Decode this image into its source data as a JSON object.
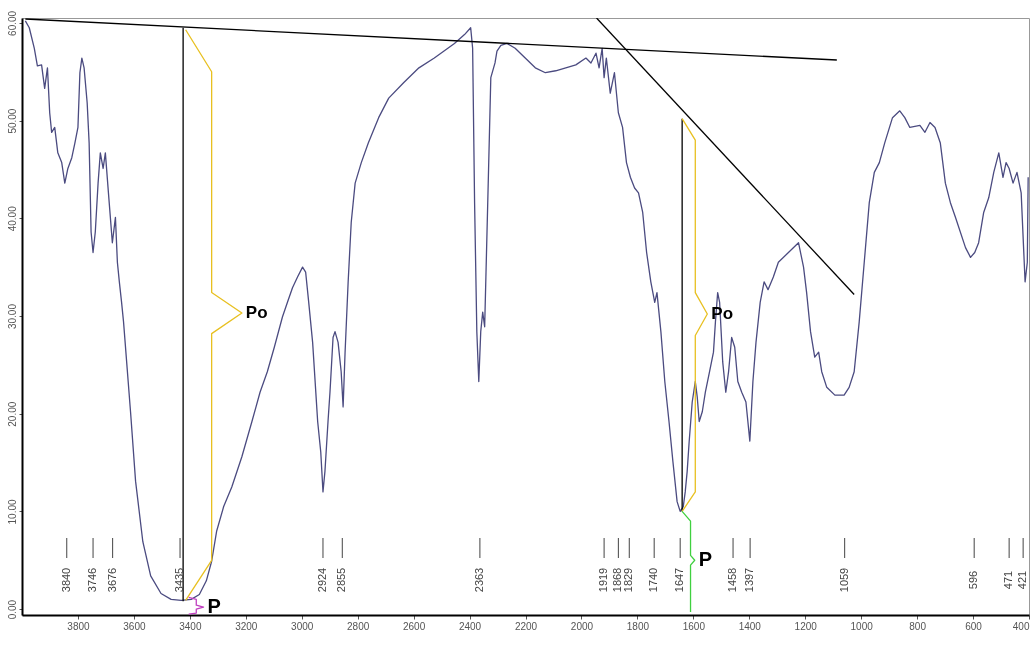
{
  "chart_data": {
    "type": "line",
    "xlim": [
      4000,
      400
    ],
    "ylim": [
      -0.6,
      60.5
    ],
    "xticks": [
      3800,
      3600,
      3400,
      3200,
      3000,
      2800,
      2600,
      2400,
      2200,
      2000,
      1800,
      1600,
      1400,
      1200,
      1000,
      800,
      600,
      400
    ],
    "yticks": [
      {
        "value": 0,
        "label": "0.00"
      },
      {
        "value": 10,
        "label": "10.00"
      },
      {
        "value": 20,
        "label": "20.00"
      },
      {
        "value": 30,
        "label": "30.00"
      },
      {
        "value": 40,
        "label": "40.00"
      },
      {
        "value": 50,
        "label": "50.00"
      },
      {
        "value": 60,
        "label": "60.00"
      }
    ],
    "grid": false,
    "marker": "none",
    "line_style": "solid",
    "series": [
      {
        "color": "#4b4b80",
        "x": [
          3988,
          3974,
          3956,
          3945,
          3930,
          3919,
          3909,
          3901,
          3894,
          3883,
          3872,
          3858,
          3847,
          3836,
          3822,
          3811,
          3800,
          3793,
          3786,
          3778,
          3767,
          3760,
          3753,
          3746,
          3738,
          3728,
          3720,
          3710,
          3702,
          3691,
          3677,
          3666,
          3659,
          3652,
          3644,
          3637,
          3612,
          3594,
          3568,
          3540,
          3503,
          3467,
          3431,
          3395,
          3366,
          3341,
          3322,
          3304,
          3279,
          3250,
          3214,
          3178,
          3149,
          3123,
          3098,
          3069,
          3051,
          3033,
          3015,
          2997,
          2986,
          2975,
          2961,
          2943,
          2932,
          2924,
          2917,
          2906,
          2899,
          2888,
          2881,
          2870,
          2859,
          2852,
          2845,
          2834,
          2823,
          2809,
          2787,
          2762,
          2725,
          2689,
          2635,
          2581,
          2526,
          2454,
          2418,
          2396,
          2389,
          2382,
          2374,
          2367,
          2360,
          2353,
          2346,
          2335,
          2324,
          2309,
          2302,
          2288,
          2266,
          2237,
          2201,
          2165,
          2129,
          2092,
          2056,
          2020,
          1984,
          1966,
          1948,
          1937,
          1926,
          1919,
          1911,
          1897,
          1882,
          1868,
          1853,
          1839,
          1825,
          1810,
          1796,
          1781,
          1767,
          1752,
          1738,
          1730,
          1716,
          1702,
          1687,
          1673,
          1658,
          1647,
          1636,
          1629,
          1622,
          1615,
          1604,
          1593,
          1586,
          1579,
          1568,
          1557,
          1542,
          1528,
          1521,
          1513,
          1506,
          1495,
          1484,
          1474,
          1463,
          1452,
          1441,
          1427,
          1412,
          1398,
          1387,
          1376,
          1361,
          1347,
          1333,
          1314,
          1296,
          1260,
          1224,
          1206,
          1195,
          1181,
          1166,
          1152,
          1141,
          1123,
          1094,
          1061,
          1043,
          1025,
          1007,
          989,
          971,
          953,
          935,
          916,
          888,
          862,
          844,
          826,
          790,
          772,
          754,
          736,
          717,
          699,
          681,
          663,
          627,
          609,
          594,
          580,
          562,
          544,
          526,
          508,
          493,
          482,
          471,
          457,
          443,
          428,
          414,
          406,
          403
        ],
        "values": [
          60.2,
          59.5,
          57.4,
          55.6,
          55.7,
          53.3,
          55.4,
          50.8,
          48.8,
          49.3,
          46.7,
          45.7,
          43.6,
          45.1,
          46.2,
          47.7,
          49.3,
          54.9,
          56.4,
          55.4,
          51.8,
          47.7,
          38.6,
          36.5,
          38.6,
          43.6,
          46.7,
          45.1,
          46.7,
          42.6,
          37.5,
          40.1,
          35.5,
          33.5,
          31.4,
          29.4,
          20.2,
          13.1,
          6.9,
          3.4,
          1.6,
          1.0,
          0.9,
          1.0,
          1.5,
          2.9,
          4.9,
          8.0,
          10.5,
          12.5,
          15.6,
          19.2,
          22.2,
          24.3,
          26.8,
          29.9,
          31.4,
          32.9,
          34.0,
          35.0,
          34.5,
          31.4,
          27.3,
          19.2,
          16.1,
          12.0,
          14.1,
          19.2,
          22.2,
          27.8,
          28.4,
          27.3,
          24.3,
          20.7,
          26.3,
          33.5,
          39.6,
          43.6,
          45.7,
          47.7,
          50.3,
          52.3,
          53.9,
          55.4,
          56.4,
          57.9,
          58.8,
          59.5,
          57.4,
          41.6,
          28.4,
          23.3,
          28.4,
          30.4,
          28.9,
          41.6,
          54.4,
          55.9,
          57.1,
          57.7,
          57.9,
          57.4,
          56.4,
          55.4,
          54.9,
          55.1,
          55.4,
          55.7,
          56.4,
          55.9,
          56.9,
          55.4,
          57.4,
          54.4,
          56.4,
          52.8,
          54.9,
          50.8,
          49.3,
          45.7,
          44.2,
          43.1,
          42.6,
          40.6,
          36.5,
          33.5,
          31.4,
          32.4,
          28.4,
          23.3,
          19.2,
          15.1,
          11.0,
          10.0,
          10.5,
          12.0,
          14.1,
          17.1,
          21.2,
          23.3,
          21.7,
          19.2,
          20.2,
          22.2,
          24.3,
          26.3,
          29.4,
          32.4,
          31.4,
          25.3,
          22.2,
          24.3,
          27.8,
          26.8,
          23.3,
          22.2,
          21.2,
          17.2,
          23.3,
          27.3,
          31.4,
          33.5,
          32.7,
          34.0,
          35.5,
          36.5,
          37.5,
          35.0,
          32.4,
          28.4,
          25.8,
          26.3,
          24.3,
          22.7,
          21.9,
          21.9,
          22.7,
          24.3,
          29.4,
          35.5,
          41.6,
          44.7,
          45.7,
          47.7,
          50.3,
          51.0,
          50.3,
          49.3,
          49.5,
          48.8,
          49.8,
          49.3,
          47.7,
          43.6,
          41.6,
          40.1,
          37.0,
          36.0,
          36.5,
          37.5,
          40.6,
          42.1,
          44.7,
          46.7,
          44.2,
          45.7,
          45.1,
          43.6,
          44.7,
          42.6,
          33.5,
          35.5,
          44.2
        ]
      },
      {
        "color": "#000000",
        "x": [
          3988,
          1087
        ],
        "values": [
          60.4,
          56.2
        ]
      },
      {
        "color": "#000000",
        "x": [
          1946,
          1025
        ],
        "values": [
          60.5,
          32.2
        ]
      },
      {
        "color": "#000000",
        "x": [
          3424,
          3424
        ],
        "values": [
          59.5,
          0.8
        ]
      },
      {
        "color": "#000000",
        "x": [
          1640,
          1640
        ],
        "values": [
          50.2,
          10.0
        ]
      },
      {
        "color": "#e8c020",
        "x": [
          3415,
          3322,
          3322,
          3214,
          3322,
          3322,
          3415
        ],
        "values": [
          59.3,
          55.0,
          32.4,
          30.3,
          28.2,
          5.0,
          0.9
        ]
      },
      {
        "color": "#e8c020",
        "x": [
          1640,
          1593,
          1593,
          1550,
          1593,
          1593,
          1640
        ],
        "values": [
          50.2,
          48.0,
          32.4,
          30.2,
          28.0,
          12.0,
          10.0
        ]
      },
      {
        "color": "#c040c0",
        "x": [
          3404,
          3377,
          3377,
          3351,
          3377,
          3377,
          3404
        ],
        "values": [
          1.2,
          1.0,
          0.4,
          0.2,
          0.0,
          -0.4,
          -0.5
        ]
      },
      {
        "color": "#40d040",
        "x": [
          1640,
          1610,
          1610,
          1595,
          1610,
          1610
        ],
        "values": [
          10.0,
          9.0,
          5.5,
          5.0,
          4.5,
          -0.3
        ]
      }
    ],
    "annotations": [
      "Po",
      "Po",
      "P",
      "P",
      {
        "text": "3840",
        "x": 3840
      },
      {
        "text": "3746",
        "x": 3746
      },
      {
        "text": "3676",
        "x": 3676
      },
      {
        "text": "3435",
        "x": 3435
      },
      {
        "text": "2924",
        "x": 2924
      },
      {
        "text": "2855",
        "x": 2855
      },
      {
        "text": "2363",
        "x": 2363
      },
      {
        "text": "1919",
        "x": 1919
      },
      {
        "text": "1868",
        "x": 1868
      },
      {
        "text": "1829",
        "x": 1829
      },
      {
        "text": "1740",
        "x": 1740
      },
      {
        "text": "1647",
        "x": 1647
      },
      {
        "text": "1458",
        "x": 1458
      },
      {
        "text": "1397",
        "x": 1397
      },
      {
        "text": "1059",
        "x": 1059
      },
      {
        "text": "596",
        "x": 596
      },
      {
        "text": "471",
        "x": 471
      },
      {
        "text": "421",
        "x": 421
      }
    ]
  }
}
